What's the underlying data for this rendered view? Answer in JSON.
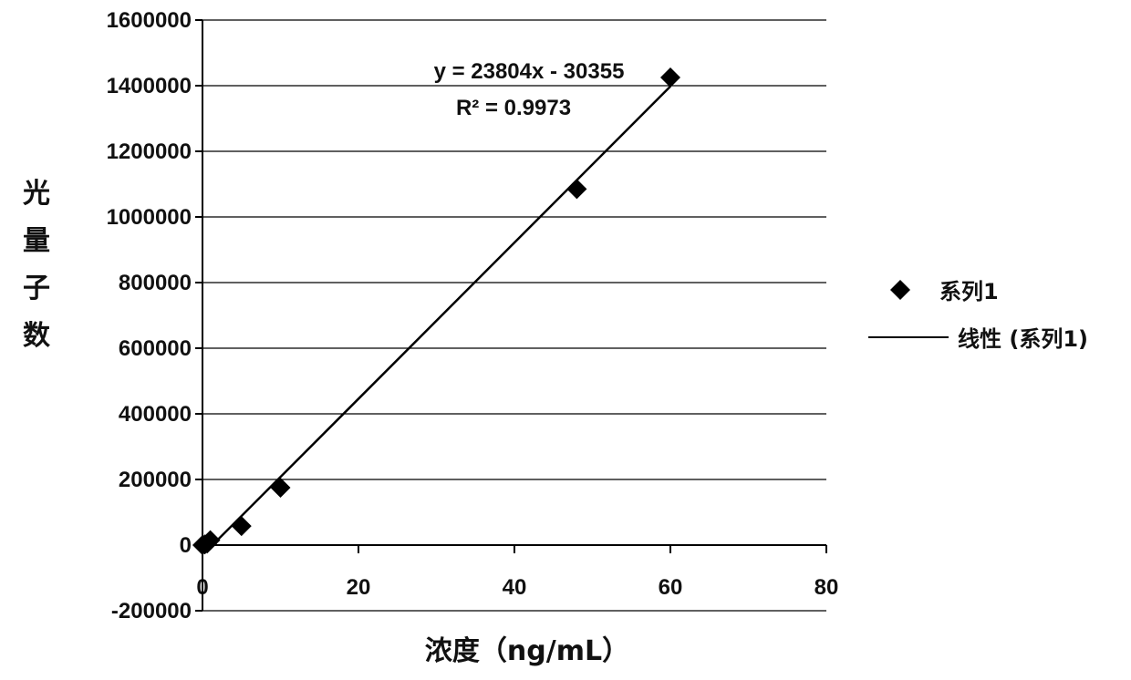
{
  "chart_data": {
    "type": "scatter",
    "title": "",
    "xlabel": "浓度（ng/mL）",
    "ylabel": "光量子数",
    "xlim": [
      0,
      80
    ],
    "ylim": [
      -200000,
      1600000
    ],
    "x_ticks": [
      0,
      20,
      40,
      60,
      80
    ],
    "y_ticks": [
      -200000,
      0,
      200000,
      400000,
      600000,
      800000,
      1000000,
      1200000,
      1400000,
      1600000
    ],
    "x_tick_labels": [
      "0",
      "20",
      "40",
      "60",
      "80"
    ],
    "y_tick_labels": [
      "-200000",
      "0",
      "200000",
      "400000",
      "600000",
      "800000",
      "1000000",
      "1200000",
      "1400000",
      "1600000"
    ],
    "grid": "horizontal",
    "legend_position": "right",
    "series": [
      {
        "name": "系列1",
        "marker": "diamond",
        "color": "#000000",
        "x": [
          0,
          0.3,
          0.6,
          1,
          5,
          10,
          48,
          60
        ],
        "y": [
          0,
          2000,
          5000,
          15000,
          58000,
          175000,
          1085000,
          1425000
        ]
      }
    ],
    "trendline": {
      "name": "线性 (系列1)",
      "type": "linear",
      "slope": 23804,
      "intercept": -30355,
      "x_range": [
        1.27,
        60
      ],
      "color": "#000000"
    },
    "annotations": {
      "equation": "y = 23804x - 30355",
      "r_squared": "R² = 0.9973"
    }
  }
}
